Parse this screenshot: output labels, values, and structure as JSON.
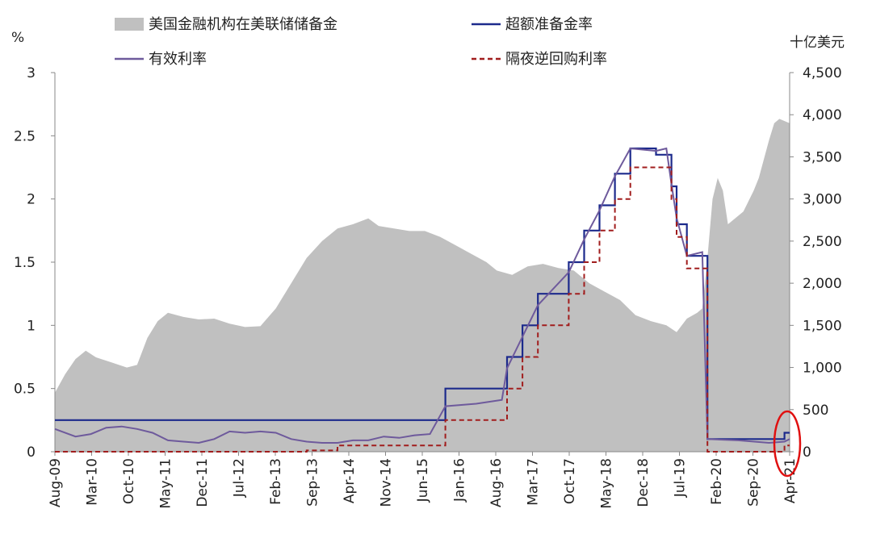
{
  "chart_data": {
    "type": "area+line",
    "left_unit": "%",
    "right_unit": "十亿美元",
    "left_axis": {
      "range": [
        0,
        3
      ],
      "ticks": [
        "0",
        "0.5",
        "1",
        "1.5",
        "2",
        "2.5",
        "3"
      ]
    },
    "right_axis": {
      "range": [
        0,
        4500
      ],
      "ticks": [
        "0",
        "500",
        "1,000",
        "1,500",
        "2,000",
        "2,500",
        "3,000",
        "3,500",
        "4,000",
        "4,500"
      ]
    },
    "x_axis": {
      "range": [
        "2009-08",
        "2021-07"
      ],
      "ticks": [
        "Aug-09",
        "Mar-10",
        "Oct-10",
        "May-11",
        "Dec-11",
        "Jul-12",
        "Feb-13",
        "Sep-13",
        "Apr-14",
        "Nov-14",
        "Jun-15",
        "Jan-16",
        "Aug-16",
        "Mar-17",
        "Oct-17",
        "May-18",
        "Dec-18",
        "Jul-19",
        "Feb-20",
        "Sep-20",
        "Apr-21"
      ]
    },
    "legend": {
      "placement": "top",
      "items": [
        {
          "label": "美国金融机构在美联储储备金",
          "style": "area",
          "color": "#c0c0c0"
        },
        {
          "label": "超额准备金率",
          "style": "solid",
          "color": "#1c2a8c"
        },
        {
          "label": "有效利率",
          "style": "solid",
          "color": "#6e5a9c"
        },
        {
          "label": "隔夜逆回购利率",
          "style": "dashed",
          "color": "#a11d1d"
        }
      ]
    },
    "series": [
      {
        "name": "美国金融机构在美联储储备金",
        "axis": "right",
        "type": "area",
        "color": "#c0c0c0",
        "points": [
          [
            "2009-08",
            700
          ],
          [
            "2009-10",
            920
          ],
          [
            "2009-12",
            1100
          ],
          [
            "2010-02",
            1200
          ],
          [
            "2010-04",
            1120
          ],
          [
            "2010-07",
            1060
          ],
          [
            "2010-10",
            1000
          ],
          [
            "2010-12",
            1030
          ],
          [
            "2011-02",
            1350
          ],
          [
            "2011-04",
            1550
          ],
          [
            "2011-06",
            1650
          ],
          [
            "2011-09",
            1600
          ],
          [
            "2011-12",
            1570
          ],
          [
            "2012-03",
            1580
          ],
          [
            "2012-06",
            1520
          ],
          [
            "2012-09",
            1480
          ],
          [
            "2012-12",
            1490
          ],
          [
            "2013-03",
            1700
          ],
          [
            "2013-06",
            2000
          ],
          [
            "2013-09",
            2300
          ],
          [
            "2013-12",
            2500
          ],
          [
            "2014-03",
            2650
          ],
          [
            "2014-06",
            2700
          ],
          [
            "2014-09",
            2770
          ],
          [
            "2014-11",
            2680
          ],
          [
            "2015-02",
            2650
          ],
          [
            "2015-05",
            2620
          ],
          [
            "2015-08",
            2620
          ],
          [
            "2015-11",
            2550
          ],
          [
            "2016-02",
            2450
          ],
          [
            "2016-05",
            2350
          ],
          [
            "2016-08",
            2250
          ],
          [
            "2016-10",
            2150
          ],
          [
            "2017-01",
            2100
          ],
          [
            "2017-04",
            2200
          ],
          [
            "2017-07",
            2230
          ],
          [
            "2017-10",
            2180
          ],
          [
            "2018-01",
            2150
          ],
          [
            "2018-04",
            2000
          ],
          [
            "2018-07",
            1900
          ],
          [
            "2018-10",
            1800
          ],
          [
            "2019-01",
            1620
          ],
          [
            "2019-04",
            1550
          ],
          [
            "2019-07",
            1500
          ],
          [
            "2019-09",
            1420
          ],
          [
            "2019-11",
            1580
          ],
          [
            "2020-01",
            1650
          ],
          [
            "2020-02",
            1700
          ],
          [
            "2020-03",
            2300
          ],
          [
            "2020-04",
            3000
          ],
          [
            "2020-05",
            3250
          ],
          [
            "2020-06",
            3100
          ],
          [
            "2020-07",
            2700
          ],
          [
            "2020-08",
            2750
          ],
          [
            "2020-10",
            2850
          ],
          [
            "2020-12",
            3100
          ],
          [
            "2021-01",
            3250
          ],
          [
            "2021-03",
            3700
          ],
          [
            "2021-04",
            3900
          ],
          [
            "2021-05",
            3950
          ],
          [
            "2021-07",
            3900
          ]
        ]
      },
      {
        "name": "超额准备金率",
        "axis": "left",
        "type": "step",
        "color": "#1c2a8c",
        "points": [
          [
            "2009-08",
            0.25
          ],
          [
            "2015-12",
            0.5
          ],
          [
            "2016-12",
            0.75
          ],
          [
            "2017-03",
            1.0
          ],
          [
            "2017-06",
            1.25
          ],
          [
            "2017-12",
            1.5
          ],
          [
            "2018-03",
            1.75
          ],
          [
            "2018-06",
            1.95
          ],
          [
            "2018-09",
            2.2
          ],
          [
            "2018-12",
            2.4
          ],
          [
            "2019-05",
            2.35
          ],
          [
            "2019-08",
            2.1
          ],
          [
            "2019-09",
            1.8
          ],
          [
            "2019-11",
            1.55
          ],
          [
            "2020-03",
            0.1
          ],
          [
            "2021-06",
            0.15
          ],
          [
            "2021-07",
            0.15
          ]
        ]
      },
      {
        "name": "有效利率",
        "axis": "left",
        "type": "line",
        "color": "#6e5a9c",
        "points": [
          [
            "2009-08",
            0.18
          ],
          [
            "2009-12",
            0.12
          ],
          [
            "2010-03",
            0.14
          ],
          [
            "2010-06",
            0.19
          ],
          [
            "2010-09",
            0.2
          ],
          [
            "2010-12",
            0.18
          ],
          [
            "2011-03",
            0.15
          ],
          [
            "2011-06",
            0.09
          ],
          [
            "2011-09",
            0.08
          ],
          [
            "2011-12",
            0.07
          ],
          [
            "2012-03",
            0.1
          ],
          [
            "2012-06",
            0.16
          ],
          [
            "2012-09",
            0.15
          ],
          [
            "2012-12",
            0.16
          ],
          [
            "2013-03",
            0.15
          ],
          [
            "2013-06",
            0.1
          ],
          [
            "2013-09",
            0.08
          ],
          [
            "2013-12",
            0.07
          ],
          [
            "2014-03",
            0.07
          ],
          [
            "2014-06",
            0.09
          ],
          [
            "2014-09",
            0.09
          ],
          [
            "2014-12",
            0.12
          ],
          [
            "2015-03",
            0.11
          ],
          [
            "2015-06",
            0.13
          ],
          [
            "2015-09",
            0.14
          ],
          [
            "2015-12",
            0.36
          ],
          [
            "2016-06",
            0.38
          ],
          [
            "2016-11",
            0.41
          ],
          [
            "2016-12",
            0.66
          ],
          [
            "2017-03",
            0.91
          ],
          [
            "2017-06",
            1.16
          ],
          [
            "2017-12",
            1.42
          ],
          [
            "2018-03",
            1.68
          ],
          [
            "2018-06",
            1.91
          ],
          [
            "2018-09",
            2.18
          ],
          [
            "2018-12",
            2.4
          ],
          [
            "2019-05",
            2.38
          ],
          [
            "2019-07",
            2.4
          ],
          [
            "2019-08",
            2.12
          ],
          [
            "2019-09",
            1.85
          ],
          [
            "2019-11",
            1.55
          ],
          [
            "2020-02",
            1.58
          ],
          [
            "2020-03",
            0.1
          ],
          [
            "2020-09",
            0.09
          ],
          [
            "2021-03",
            0.07
          ],
          [
            "2021-06",
            0.08
          ],
          [
            "2021-07",
            0.1
          ]
        ]
      },
      {
        "name": "隔夜逆回购利率",
        "axis": "left",
        "type": "step",
        "color": "#a11d1d",
        "dashed": true,
        "points": [
          [
            "2009-08",
            0.0
          ],
          [
            "2013-09",
            0.01
          ],
          [
            "2014-03",
            0.05
          ],
          [
            "2015-01",
            0.05
          ],
          [
            "2015-12",
            0.25
          ],
          [
            "2016-12",
            0.5
          ],
          [
            "2017-03",
            0.75
          ],
          [
            "2017-06",
            1.0
          ],
          [
            "2017-12",
            1.25
          ],
          [
            "2018-03",
            1.5
          ],
          [
            "2018-06",
            1.75
          ],
          [
            "2018-09",
            2.0
          ],
          [
            "2018-12",
            2.25
          ],
          [
            "2019-08",
            2.0
          ],
          [
            "2019-09",
            1.7
          ],
          [
            "2019-11",
            1.45
          ],
          [
            "2020-03",
            0.0
          ],
          [
            "2021-06",
            0.05
          ],
          [
            "2021-07",
            0.05
          ]
        ]
      }
    ]
  }
}
